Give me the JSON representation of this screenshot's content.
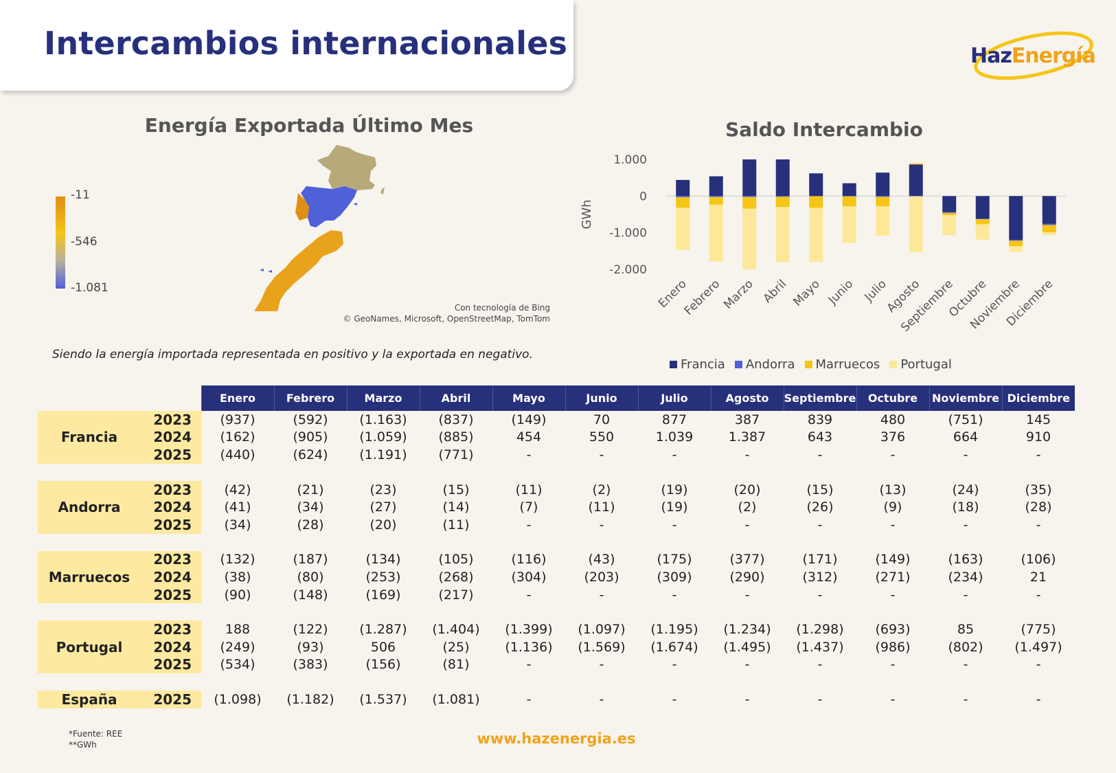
{
  "header": {
    "title": "Intercambios internacionales"
  },
  "logo": {
    "haz": "Haz",
    "energia": "Energía"
  },
  "map": {
    "title": "Energía Exportada Último Mes",
    "legend": {
      "max": "-11",
      "mid": "-546",
      "min": "-1.081"
    },
    "attribution_line1": "Con tecnología de Bing",
    "attribution_line2": "© GeoNames, Microsoft, OpenStreetMap, TomTom",
    "colors": {
      "francia": "#b8a97a",
      "espana": "#5060d8",
      "portugal": "#e08e14",
      "marruecos": "#e8a21c"
    }
  },
  "note": "Siendo la energía importada representada en positivo y la exportada en negativo.",
  "chart_data": {
    "type": "bar",
    "stacked": true,
    "title": "Saldo Intercambio",
    "ylabel": "GWh",
    "ylim": [
      -2000,
      1000
    ],
    "yticks": [
      "1.000",
      "0",
      "-1.000",
      "-2.000"
    ],
    "categories": [
      "Enero",
      "Febrero",
      "Marzo",
      "Abril",
      "Mayo",
      "Junio",
      "Julio",
      "Agosto",
      "Septiembre",
      "Octubre",
      "Noviembre",
      "Diciembre"
    ],
    "series": [
      {
        "name": "Francia",
        "color": "#27307b",
        "values": [
          440,
          540,
          1000,
          1000,
          620,
          350,
          640,
          860,
          -440,
          -620,
          -1200,
          -760
        ]
      },
      {
        "name": "Andorra",
        "color": "#5060d8",
        "values": [
          -30,
          -25,
          -25,
          -20,
          -5,
          -10,
          -20,
          -5,
          -20,
          -10,
          -20,
          -30
        ]
      },
      {
        "name": "Marruecos",
        "color": "#f5c518",
        "values": [
          -290,
          -210,
          -320,
          -280,
          -320,
          -270,
          -260,
          30,
          -60,
          -140,
          -150,
          -200
        ]
      },
      {
        "name": "Portugal",
        "color": "#fde89a",
        "values": [
          -1150,
          -1550,
          -1660,
          -1500,
          -1470,
          -1000,
          -800,
          -1530,
          -550,
          -420,
          -150,
          -80
        ]
      }
    ],
    "legend_position": "bottom"
  },
  "table": {
    "months": [
      "Enero",
      "Febrero",
      "Marzo",
      "Abril",
      "Mayo",
      "Junio",
      "Julio",
      "Agosto",
      "Septiembre",
      "Octubre",
      "Noviembre",
      "Diciembre"
    ],
    "groups": [
      {
        "country": "Francia",
        "rows": [
          {
            "year": "2023",
            "values": [
              "(937)",
              "(592)",
              "(1.163)",
              "(837)",
              "(149)",
              "70",
              "877",
              "387",
              "839",
              "480",
              "(751)",
              "145"
            ]
          },
          {
            "year": "2024",
            "values": [
              "(162)",
              "(905)",
              "(1.059)",
              "(885)",
              "454",
              "550",
              "1.039",
              "1.387",
              "643",
              "376",
              "664",
              "910"
            ]
          },
          {
            "year": "2025",
            "values": [
              "(440)",
              "(624)",
              "(1.191)",
              "(771)",
              "-",
              "-",
              "-",
              "-",
              "-",
              "-",
              "-",
              "-"
            ]
          }
        ]
      },
      {
        "country": "Andorra",
        "rows": [
          {
            "year": "2023",
            "values": [
              "(42)",
              "(21)",
              "(23)",
              "(15)",
              "(11)",
              "(2)",
              "(19)",
              "(20)",
              "(15)",
              "(13)",
              "(24)",
              "(35)"
            ]
          },
          {
            "year": "2024",
            "values": [
              "(41)",
              "(34)",
              "(27)",
              "(14)",
              "(7)",
              "(11)",
              "(19)",
              "(2)",
              "(26)",
              "(9)",
              "(18)",
              "(28)"
            ]
          },
          {
            "year": "2025",
            "values": [
              "(34)",
              "(28)",
              "(20)",
              "(11)",
              "-",
              "-",
              "-",
              "-",
              "-",
              "-",
              "-",
              "-"
            ]
          }
        ]
      },
      {
        "country": "Marruecos",
        "rows": [
          {
            "year": "2023",
            "values": [
              "(132)",
              "(187)",
              "(134)",
              "(105)",
              "(116)",
              "(43)",
              "(175)",
              "(377)",
              "(171)",
              "(149)",
              "(163)",
              "(106)"
            ]
          },
          {
            "year": "2024",
            "values": [
              "(38)",
              "(80)",
              "(253)",
              "(268)",
              "(304)",
              "(203)",
              "(309)",
              "(290)",
              "(312)",
              "(271)",
              "(234)",
              "21"
            ]
          },
          {
            "year": "2025",
            "values": [
              "(90)",
              "(148)",
              "(169)",
              "(217)",
              "-",
              "-",
              "-",
              "-",
              "-",
              "-",
              "-",
              "-"
            ]
          }
        ]
      },
      {
        "country": "Portugal",
        "rows": [
          {
            "year": "2023",
            "values": [
              "188",
              "(122)",
              "(1.287)",
              "(1.404)",
              "(1.399)",
              "(1.097)",
              "(1.195)",
              "(1.234)",
              "(1.298)",
              "(693)",
              "85",
              "(775)"
            ]
          },
          {
            "year": "2024",
            "values": [
              "(249)",
              "(93)",
              "506",
              "(25)",
              "(1.136)",
              "(1.569)",
              "(1.674)",
              "(1.495)",
              "(1.437)",
              "(986)",
              "(802)",
              "(1.497)"
            ]
          },
          {
            "year": "2025",
            "values": [
              "(534)",
              "(383)",
              "(156)",
              "(81)",
              "-",
              "-",
              "-",
              "-",
              "-",
              "-",
              "-",
              "-"
            ]
          }
        ]
      },
      {
        "country": "España",
        "rows": [
          {
            "year": "2025",
            "values": [
              "(1.098)",
              "(1.182)",
              "(1.537)",
              "(1.081)",
              "-",
              "-",
              "-",
              "-",
              "-",
              "-",
              "-",
              "-"
            ]
          }
        ]
      }
    ]
  },
  "footer": {
    "source": "*Fuente: REE",
    "unit": "**GWh",
    "website": "www.hazenergia.es"
  }
}
